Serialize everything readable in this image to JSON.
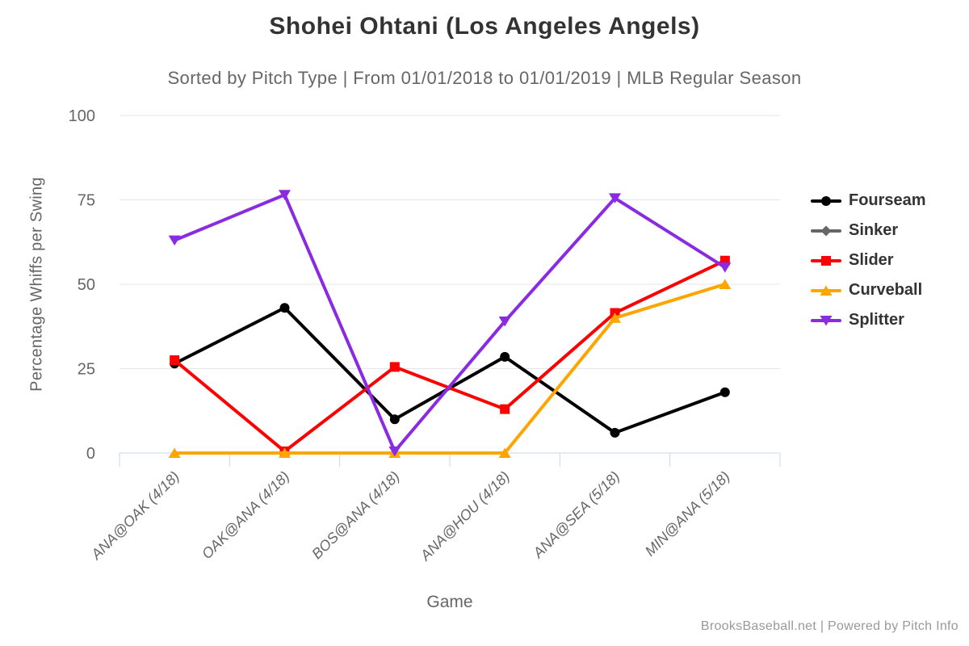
{
  "chart_data": {
    "type": "line",
    "title": "Shohei Ohtani (Los Angeles Angels)",
    "subtitle": "Sorted by Pitch Type | From 01/01/2018 to 01/01/2019 | MLB Regular Season",
    "xlabel": "Game",
    "ylabel": "Percentage Whiffs per Swing",
    "footer": "BrooksBaseball.net | Powered by Pitch Info",
    "ylim": [
      0,
      100
    ],
    "yticks": [
      0,
      25,
      50,
      75,
      100
    ],
    "grid": true,
    "legend_position": "right",
    "categories": [
      "ANA@OAK (4/18)",
      "OAK@ANA (4/18)",
      "BOS@ANA (4/18)",
      "ANA@HOU (4/18)",
      "ANA@SEA (5/18)",
      "MIN@ANA (5/18)"
    ],
    "series": [
      {
        "name": "Fourseam",
        "color": "#000000",
        "marker": "circle",
        "values": [
          26.5,
          43,
          10,
          28.5,
          6,
          18
        ]
      },
      {
        "name": "Sinker",
        "color": "#666666",
        "marker": "diamond",
        "values": [
          null,
          null,
          null,
          null,
          null,
          null
        ]
      },
      {
        "name": "Slider",
        "color": "#ff0000",
        "marker": "square",
        "values": [
          27.5,
          0.5,
          25.5,
          13,
          41.5,
          57
        ]
      },
      {
        "name": "Curveball",
        "color": "#ffa500",
        "marker": "triangle-up",
        "values": [
          0,
          0,
          0,
          0,
          40,
          50
        ]
      },
      {
        "name": "Splitter",
        "color": "#8a2be2",
        "marker": "triangle-down",
        "values": [
          63,
          76.5,
          0.5,
          39,
          75.5,
          55
        ]
      }
    ],
    "colors": {
      "grid_line": "#e6e6e6",
      "axis_line": "#ccd6eb",
      "tick_label": "#666666",
      "title_text": "#333333",
      "subtitle_text": "#666666",
      "footer_text": "#999999"
    }
  }
}
